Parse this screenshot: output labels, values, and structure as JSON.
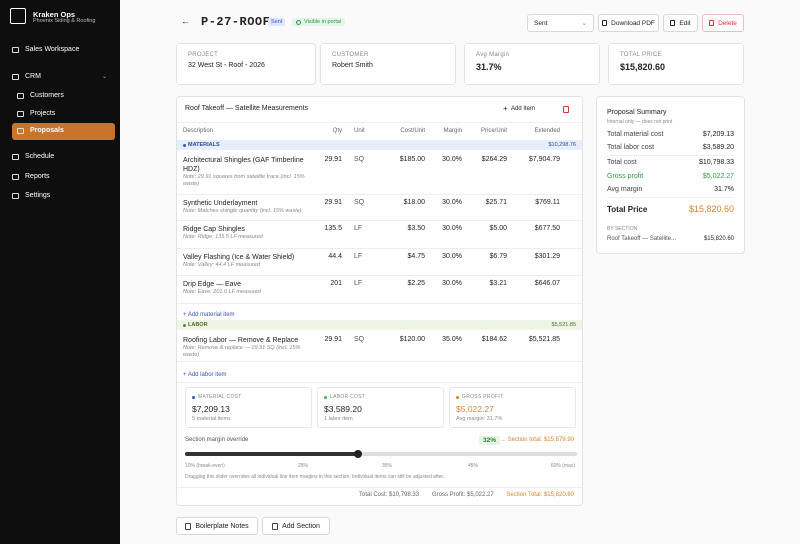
{
  "sidebar": {
    "brand": "Kraken Ops",
    "tagline": "Phoenix Siding & Roofing",
    "nav": [
      {
        "label": "Sales Workspace"
      },
      {
        "label": "CRM"
      },
      {
        "label": "Customers"
      },
      {
        "label": "Projects"
      },
      {
        "label": "Proposals"
      },
      {
        "label": "Schedule"
      },
      {
        "label": "Reports"
      },
      {
        "label": "Settings"
      }
    ]
  },
  "header": {
    "title": "P-27-ROOF",
    "status_badge": "Sent",
    "portal_badge": "Visible in portal",
    "status_select": "Sent",
    "actions": [
      "Download PDF",
      "Edit",
      "Delete"
    ]
  },
  "info_cards": [
    {
      "label": "PROJECT",
      "value": "32 West St - Roof - 2026"
    },
    {
      "label": "CUSTOMER",
      "value": "Robert Smith"
    },
    {
      "label": "Avg Margin",
      "value": "31.7%"
    },
    {
      "label": "TOTAL PRICE",
      "value": "$15,820.60"
    }
  ],
  "section": {
    "title": "Roof Takeoff — Satellite Measurements",
    "add_item": "Add Item",
    "columns": [
      "Description",
      "Qty",
      "Unit",
      "Cost/Unit",
      "Margin",
      "Price/Unit",
      "Extended"
    ],
    "groups": [
      {
        "name": "MATERIALS",
        "total": "$10,298.76",
        "add_link": "+ Add material item",
        "rows": [
          {
            "description": "Architectural Shingles (GAF Timberline HDZ)",
            "note": "Note: 29.91 squares from satellite trace (incl. 15% waste)",
            "qty": "29.91",
            "unit": "SQ",
            "cost": "$185.00",
            "margin": "30.0%",
            "price": "$264.29",
            "extended": "$7,904.79"
          },
          {
            "description": "Synthetic Underlayment",
            "note": "Note: Matches shingle quantity (incl. 15% waste)",
            "qty": "29.91",
            "unit": "SQ",
            "cost": "$18.00",
            "margin": "30.0%",
            "price": "$25.71",
            "extended": "$769.11"
          },
          {
            "description": "Ridge Cap Shingles",
            "note": "Note: Ridge: 135.5 LF measured",
            "qty": "135.5",
            "unit": "LF",
            "cost": "$3.50",
            "margin": "30.0%",
            "price": "$5.00",
            "extended": "$677.50"
          },
          {
            "description": "Valley Flashing (Ice & Water Shield)",
            "note": "Note: Valley: 44.4 LF measured",
            "qty": "44.4",
            "unit": "LF",
            "cost": "$4.75",
            "margin": "30.0%",
            "price": "$6.79",
            "extended": "$301.29"
          },
          {
            "description": "Drip Edge — Eave",
            "note": "Note: Eave: 201.0 LF measured",
            "qty": "201",
            "unit": "LF",
            "cost": "$2.25",
            "margin": "30.0%",
            "price": "$3.21",
            "extended": "$646.07"
          }
        ]
      },
      {
        "name": "LABOR",
        "total": "$5,521.85",
        "add_link": "+ Add labor item",
        "rows": [
          {
            "description": "Roofing Labor — Remove & Replace",
            "note": "Note: Remove & replace — 29.91 SQ (incl. 15% waste)",
            "qty": "29.91",
            "unit": "SQ",
            "cost": "$120.00",
            "margin": "35.0%",
            "price": "$184.62",
            "extended": "$5,521.85"
          }
        ]
      }
    ],
    "stats": [
      {
        "label": "MATERIAL COST",
        "value": "$7,209.13",
        "detail": "5 material items"
      },
      {
        "label": "LABOR COST",
        "value": "$3,589.20",
        "detail": "1 labor item"
      },
      {
        "label": "GROSS PROFIT",
        "value": "$5,022.27",
        "detail": "Avg margin: 31.7%"
      }
    ],
    "margin_override": {
      "label": "Section margin override",
      "value": "32%",
      "section_total": "→ Section total: $15,879.90",
      "scale": [
        "10% (break-even)",
        "25%",
        "35%",
        "45%",
        "60% (max)"
      ],
      "note": "Dragging this slider overrides all individual line item margins in this section. Individual items can still be adjusted after."
    },
    "footer": {
      "total_cost": "Total Cost: $10,798.33",
      "gross_profit": "Gross Profit: $5,022.27",
      "section_total": "Section Total: $15,820.60"
    }
  },
  "bottom_actions": [
    "Boilerplate Notes",
    "Add Section"
  ],
  "summary": {
    "title": "Proposal Summary",
    "subtitle": "Internal only — does not print",
    "rows": [
      {
        "label": "Total material cost",
        "value": "$7,209.13"
      },
      {
        "label": "Total labor cost",
        "value": "$3,589.20"
      },
      {
        "label": "Total cost",
        "value": "$10,798.33"
      },
      {
        "label": "Gross profit",
        "value": "$5,022.27"
      },
      {
        "label": "Avg margin",
        "value": "31.7%"
      }
    ],
    "total_label": "Total Price",
    "total_value": "$15,820.60",
    "by_section": "BY SECTION",
    "sections": [
      {
        "name": "Roof Takeoff — Satellite...",
        "value": "$15,820.60"
      }
    ]
  }
}
